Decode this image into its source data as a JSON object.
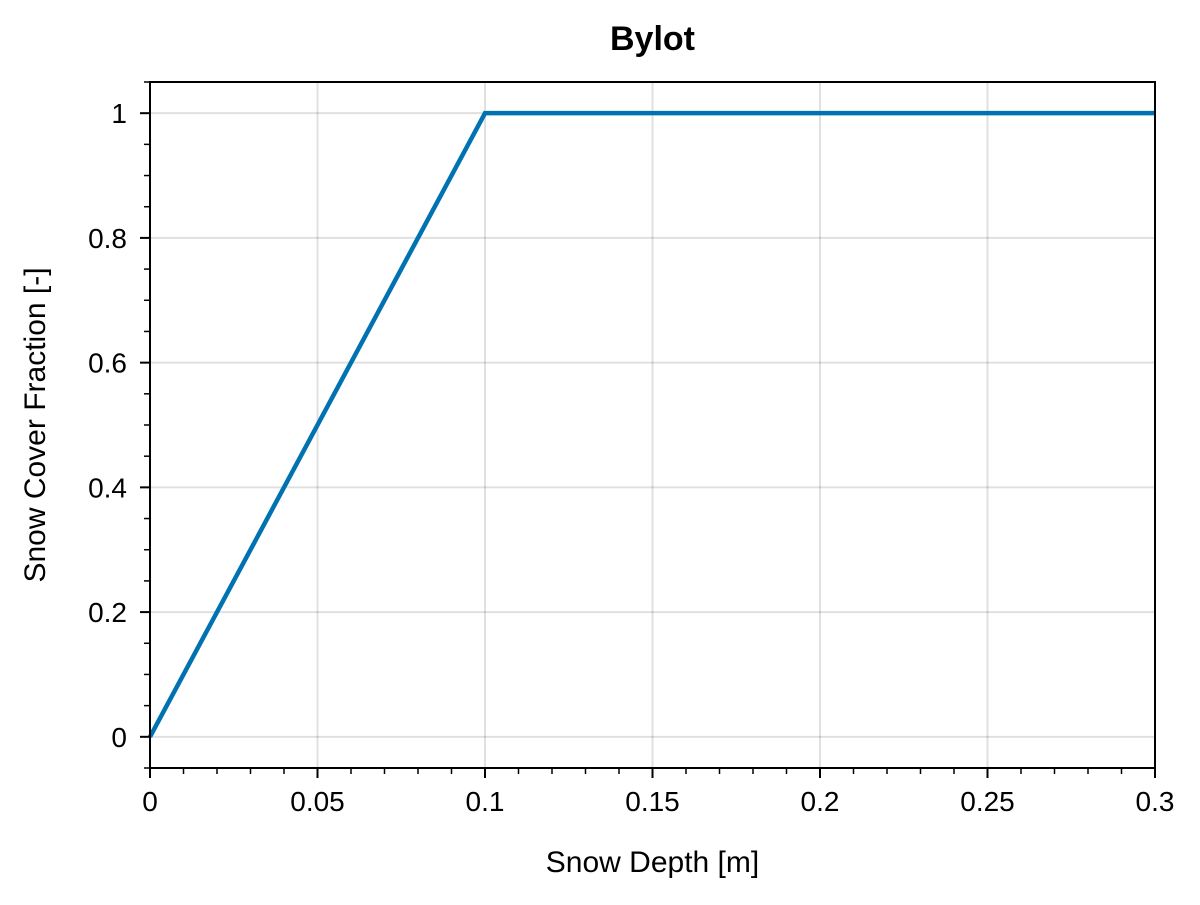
{
  "chart_data": {
    "type": "line",
    "title": "Bylot",
    "xlabel": "Snow Depth [m]",
    "ylabel": "Snow Cover Fraction [-]",
    "xlim": [
      0,
      0.3
    ],
    "ylim": [
      -0.05,
      1.05
    ],
    "x_ticks": [
      0,
      0.05,
      0.1,
      0.15,
      0.2,
      0.25,
      0.3
    ],
    "x_tick_labels": [
      "0",
      "0.05",
      "0.1",
      "0.15",
      "0.2",
      "0.25",
      "0.3"
    ],
    "y_ticks": [
      0,
      0.2,
      0.4,
      0.6,
      0.8,
      1
    ],
    "y_tick_labels": [
      "0",
      "0.2",
      "0.4",
      "0.6",
      "0.8",
      "1"
    ],
    "grid": true,
    "series": [
      {
        "x": [
          0,
          0.1,
          0.3
        ],
        "y": [
          0,
          1,
          1
        ],
        "color": "#0072b2"
      }
    ]
  }
}
